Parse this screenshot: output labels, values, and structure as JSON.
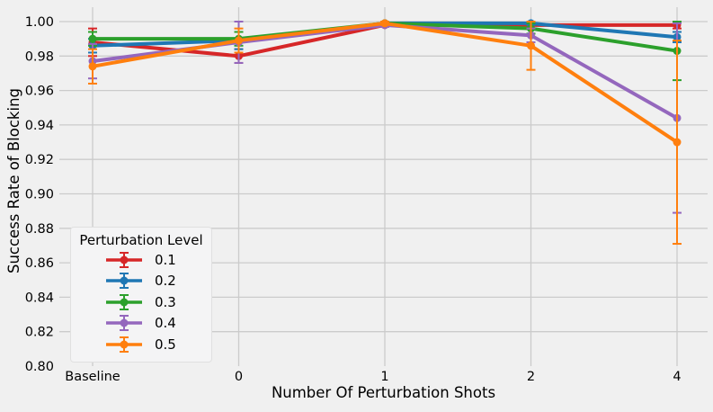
{
  "colors": {
    "background": "#f0f0f0",
    "gridline": "#cbcbcb",
    "text": "#000000",
    "legend_bg": "#f4f4f5",
    "legend_border": "#e0e0e0"
  },
  "chart_data": {
    "type": "line",
    "title": "",
    "xlabel": "Number Of Perturbation Shots",
    "ylabel": "Success Rate of Blocking",
    "categories": [
      "Baseline",
      "0",
      "1",
      "2",
      "4"
    ],
    "ylim": [
      0.8,
      1.0
    ],
    "ytick_labels": [
      "0.80",
      "0.82",
      "0.84",
      "0.86",
      "0.88",
      "0.90",
      "0.92",
      "0.94",
      "0.96",
      "0.98",
      "1.00"
    ],
    "grid": true,
    "legend": {
      "title": "Perturbation Level",
      "position": "lower-left"
    },
    "series": [
      {
        "name": "0.1",
        "color": "#d62728",
        "values": [
          0.988,
          0.98,
          0.998,
          0.998,
          0.998
        ],
        "errors": [
          0.008,
          0.004,
          0.001,
          0.002,
          0.002
        ]
      },
      {
        "name": "0.2",
        "color": "#1f77b4",
        "values": [
          0.986,
          0.989,
          0.999,
          0.999,
          0.991
        ],
        "errors": [
          0.004,
          0.005,
          0.001,
          0.001,
          0.003
        ]
      },
      {
        "name": "0.3",
        "color": "#2ca02c",
        "values": [
          0.99,
          0.99,
          0.999,
          0.996,
          0.983
        ],
        "errors": [
          0.004,
          0.004,
          0.001,
          0.003,
          0.017
        ]
      },
      {
        "name": "0.4",
        "color": "#9467bd",
        "values": [
          0.977,
          0.988,
          0.998,
          0.992,
          0.944
        ],
        "errors": [
          0.01,
          0.012,
          0.001,
          0.004,
          0.055
        ]
      },
      {
        "name": "0.5",
        "color": "#ff7f0e",
        "values": [
          0.974,
          0.989,
          0.999,
          0.986,
          0.93
        ],
        "errors": [
          0.01,
          0.007,
          0.001,
          0.014,
          0.059
        ]
      }
    ]
  }
}
